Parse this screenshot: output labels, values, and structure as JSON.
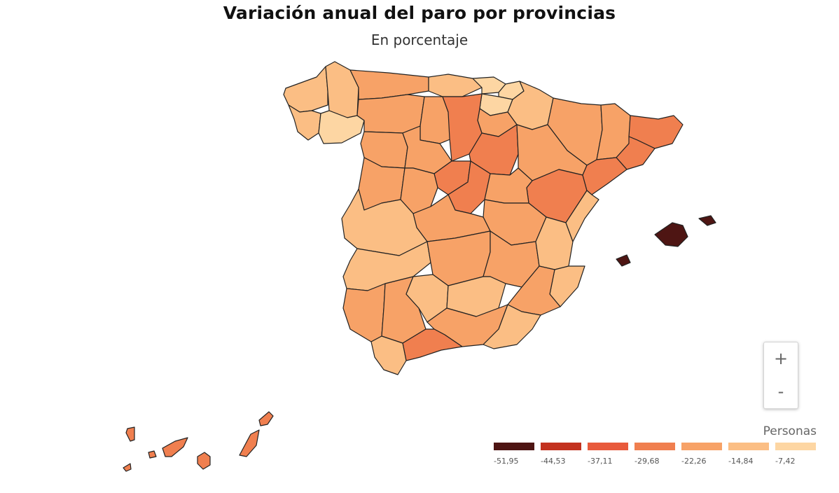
{
  "header": {
    "title": "Variación anual del paro por provincias",
    "subtitle": "En porcentaje"
  },
  "controls": {
    "zoom_in": "+",
    "zoom_out": "-"
  },
  "legend": {
    "title": "Personas",
    "bins": [
      {
        "label": "-51,95",
        "color": "#4e1513"
      },
      {
        "label": "-44,53",
        "color": "#c3321f"
      },
      {
        "label": "-37,11",
        "color": "#e85a3c"
      },
      {
        "label": "-29,68",
        "color": "#f07f4f"
      },
      {
        "label": "-22,26",
        "color": "#f7a267"
      },
      {
        "label": "-14,84",
        "color": "#fbbe84"
      },
      {
        "label": "-7,42",
        "color": "#fdd6a3"
      }
    ]
  },
  "colors": {
    "ocean": "#ffffff",
    "border": "#222222"
  }
}
